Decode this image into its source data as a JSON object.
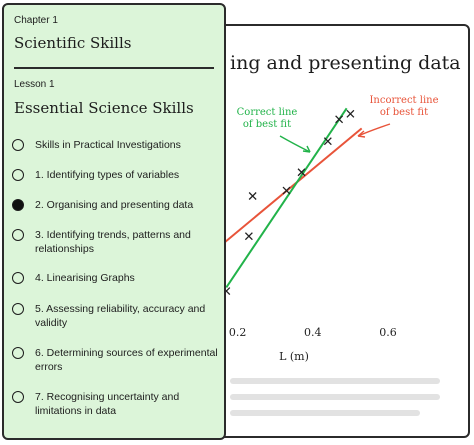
{
  "back_card": {
    "title": "ing and presenting data",
    "annotations": {
      "correct_line": [
        "Correct line",
        "of best fit"
      ],
      "incorrect_line": [
        "Incorrect line",
        "of best fit"
      ]
    },
    "colors": {
      "correct": "#22b34a",
      "incorrect": "#e8543a",
      "points": "#222222"
    }
  },
  "chart_data": {
    "type": "scatter",
    "xlabel": "L (m)",
    "xticks": [
      0.2,
      0.4,
      0.6
    ],
    "xlim": [
      0.1,
      0.6
    ],
    "points": [
      {
        "x": 0.17,
        "y": 0.06
      },
      {
        "x": 0.23,
        "y": 0.36
      },
      {
        "x": 0.24,
        "y": 0.58
      },
      {
        "x": 0.33,
        "y": 0.61
      },
      {
        "x": 0.37,
        "y": 0.71
      },
      {
        "x": 0.44,
        "y": 0.88
      },
      {
        "x": 0.47,
        "y": 1.0
      },
      {
        "x": 0.5,
        "y": 1.03
      }
    ],
    "series": [
      {
        "name": "Correct line of best fit",
        "from": {
          "x": 0.17,
          "y": 0.08
        },
        "to": {
          "x": 0.49,
          "y": 1.06
        }
      },
      {
        "name": "Incorrect line of best fit",
        "from": {
          "x": 0.08,
          "y": 0.18
        },
        "to": {
          "x": 0.53,
          "y": 0.95
        }
      }
    ]
  },
  "front_card": {
    "chapter_label": "Chapter 1",
    "chapter_title": "Scientific Skills",
    "lesson_label": "Lesson 1",
    "lesson_title": "Essential Science Skills",
    "items": [
      {
        "label": "Skills in Practical Investigations",
        "selected": false
      },
      {
        "label": "1. Identifying types of variables",
        "selected": false
      },
      {
        "label": "2. Organising and presenting data",
        "selected": true
      },
      {
        "label": "3. Identifying trends, patterns and relationships",
        "selected": false
      },
      {
        "label": "4. Linearising Graphs",
        "selected": false
      },
      {
        "label": "5. Assessing reliability, accuracy and validity",
        "selected": false
      },
      {
        "label": "6. Determining sources of experimental errors",
        "selected": false
      },
      {
        "label": "7. Recognising uncertainty and limitations in data",
        "selected": false
      }
    ]
  }
}
